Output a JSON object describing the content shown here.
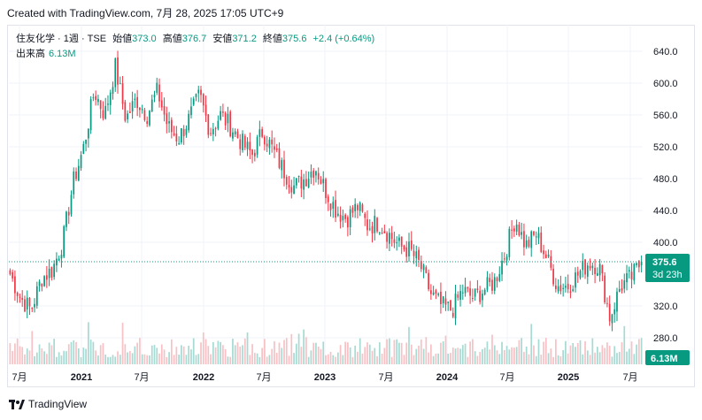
{
  "header": {
    "created": "Created with TradingView.com, 7月 28, 2025 17:05 UTC+9"
  },
  "legend": {
    "symbol": "住友化学 · 1週 · TSE",
    "open_label": "始値",
    "open": "373.0",
    "high_label": "高値",
    "high": "376.7",
    "low_label": "安値",
    "low": "371.2",
    "close_label": "終値",
    "close": "375.6",
    "change": "+2.4 (+0.64%)",
    "volume_label": "出来高",
    "volume": "6.13M"
  },
  "badges": {
    "price": "375.6",
    "countdown": "3d 23h",
    "volume": "6.13M"
  },
  "colors": {
    "up": "#089981",
    "down": "#f23645",
    "up_vol": "#a6dad2",
    "down_vol": "#f7c1c5",
    "grid": "#f0f3fa",
    "price_line": "#089981"
  },
  "footer": {
    "brand": "TradingView"
  },
  "chart_data": {
    "type": "candlestick",
    "y_ticks": [
      "640.0",
      "600.0",
      "560.0",
      "520.0",
      "480.0",
      "440.0",
      "400.0",
      "320.0",
      "280.0"
    ],
    "x_ticks": [
      "7月",
      "2021",
      "7月",
      "2022",
      "7月",
      "2023",
      "7月",
      "2024",
      "7月",
      "2025",
      "7月"
    ],
    "ylim": [
      260,
      660
    ],
    "last_close": 375.6,
    "series": [
      {
        "name": "price_close_weekly_approx",
        "points": [
          [
            "2020-07",
            360
          ],
          [
            "2020-08",
            330
          ],
          [
            "2020-09",
            315
          ],
          [
            "2020-10",
            355
          ],
          [
            "2020-11",
            365
          ],
          [
            "2020-12",
            400
          ],
          [
            "2021-01",
            475
          ],
          [
            "2021-02",
            520
          ],
          [
            "2021-03",
            590
          ],
          [
            "2021-04",
            560
          ],
          [
            "2021-05",
            620
          ],
          [
            "2021-06",
            555
          ],
          [
            "2021-07",
            580
          ],
          [
            "2021-08",
            560
          ],
          [
            "2021-09",
            590
          ],
          [
            "2021-10",
            545
          ],
          [
            "2021-11",
            530
          ],
          [
            "2021-12",
            555
          ],
          [
            "2022-01",
            585
          ],
          [
            "2022-02",
            540
          ],
          [
            "2022-03",
            560
          ],
          [
            "2022-04",
            545
          ],
          [
            "2022-05",
            525
          ],
          [
            "2022-06",
            510
          ],
          [
            "2022-07",
            540
          ],
          [
            "2022-08",
            515
          ],
          [
            "2022-09",
            490
          ],
          [
            "2022-10",
            470
          ],
          [
            "2022-11",
            480
          ],
          [
            "2022-12",
            495
          ],
          [
            "2023-01",
            465
          ],
          [
            "2023-02",
            440
          ],
          [
            "2023-03",
            430
          ],
          [
            "2023-04",
            445
          ],
          [
            "2023-05",
            420
          ],
          [
            "2023-06",
            425
          ],
          [
            "2023-07",
            410
          ],
          [
            "2023-08",
            395
          ],
          [
            "2023-09",
            390
          ],
          [
            "2023-10",
            370
          ],
          [
            "2023-11",
            335
          ],
          [
            "2023-12",
            320
          ],
          [
            "2024-01",
            315
          ],
          [
            "2024-02",
            340
          ],
          [
            "2024-03",
            330
          ],
          [
            "2024-04",
            340
          ],
          [
            "2024-05",
            350
          ],
          [
            "2024-06",
            385
          ],
          [
            "2024-07",
            430
          ],
          [
            "2024-08",
            395
          ],
          [
            "2024-09",
            410
          ],
          [
            "2024-10",
            380
          ],
          [
            "2024-11",
            345
          ],
          [
            "2024-12",
            345
          ],
          [
            "2025-01",
            360
          ],
          [
            "2025-02",
            375
          ],
          [
            "2025-03",
            370
          ],
          [
            "2025-04",
            305
          ],
          [
            "2025-05",
            345
          ],
          [
            "2025-06",
            355
          ],
          [
            "2025-07",
            375.6
          ]
        ]
      },
      {
        "name": "volume",
        "unit": "M",
        "last": 6.13
      }
    ]
  }
}
